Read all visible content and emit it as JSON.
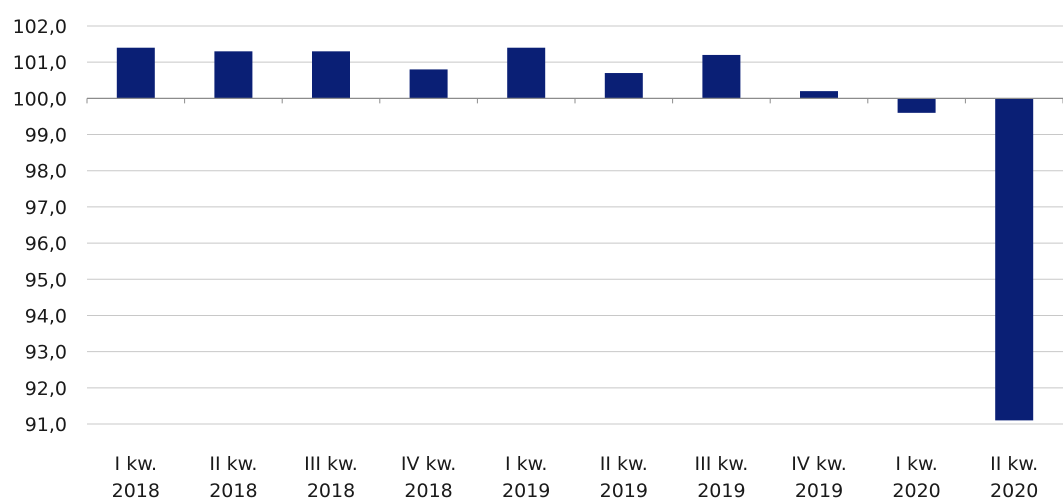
{
  "chart_data": {
    "type": "bar",
    "title": "",
    "xlabel": "",
    "ylabel": "",
    "categories": [
      [
        "I kw.",
        "2018"
      ],
      [
        "II kw.",
        "2018"
      ],
      [
        "III kw.",
        "2018"
      ],
      [
        "IV kw.",
        "2018"
      ],
      [
        "I kw.",
        "2019"
      ],
      [
        "II kw.",
        "2019"
      ],
      [
        "III kw.",
        "2019"
      ],
      [
        "IV kw.",
        "2019"
      ],
      [
        "I kw.",
        "2020"
      ],
      [
        "II kw.",
        "2020"
      ]
    ],
    "values": [
      101.4,
      101.3,
      101.3,
      100.8,
      101.4,
      100.7,
      101.2,
      100.2,
      99.6,
      91.1
    ],
    "baseline": 100.0,
    "ylim": [
      91.0,
      102.0
    ],
    "yticks": [
      "91,0",
      "92,0",
      "93,0",
      "94,0",
      "95,0",
      "96,0",
      "97,0",
      "98,0",
      "99,0",
      "100,0",
      "101,0",
      "102,0"
    ],
    "grid": true,
    "legend": "none",
    "colors": {
      "bar": "#0a1f75",
      "grid": "#c8c8c8",
      "axis": "#8c8c8c",
      "text": "#1a1a1a"
    }
  }
}
